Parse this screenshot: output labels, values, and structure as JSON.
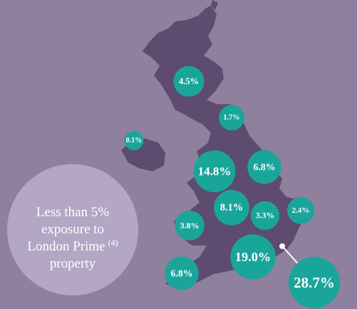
{
  "bubbles": [
    {
      "value": 4.5,
      "label": "4.5%"
    },
    {
      "value": 1.7,
      "label": "1.7%"
    },
    {
      "value": 0.1,
      "label": "0.1%"
    },
    {
      "value": 14.8,
      "label": "14.8%"
    },
    {
      "value": 6.8,
      "label": "6.8%"
    },
    {
      "value": 8.1,
      "label": "8.1%"
    },
    {
      "value": 3.3,
      "label": "3.3%"
    },
    {
      "value": 2.4,
      "label": "2.4%"
    },
    {
      "value": 3.8,
      "label": "3.8%"
    },
    {
      "value": 19.0,
      "label": "19.0%"
    },
    {
      "value": 28.7,
      "label": "28.7%"
    },
    {
      "value": 6.8,
      "label": "6.8%"
    }
  ],
  "note": {
    "line1": "Less than 5%",
    "line2": "exposure to",
    "line3": "London Prime",
    "superscript": "(4)",
    "line4": "property"
  }
}
